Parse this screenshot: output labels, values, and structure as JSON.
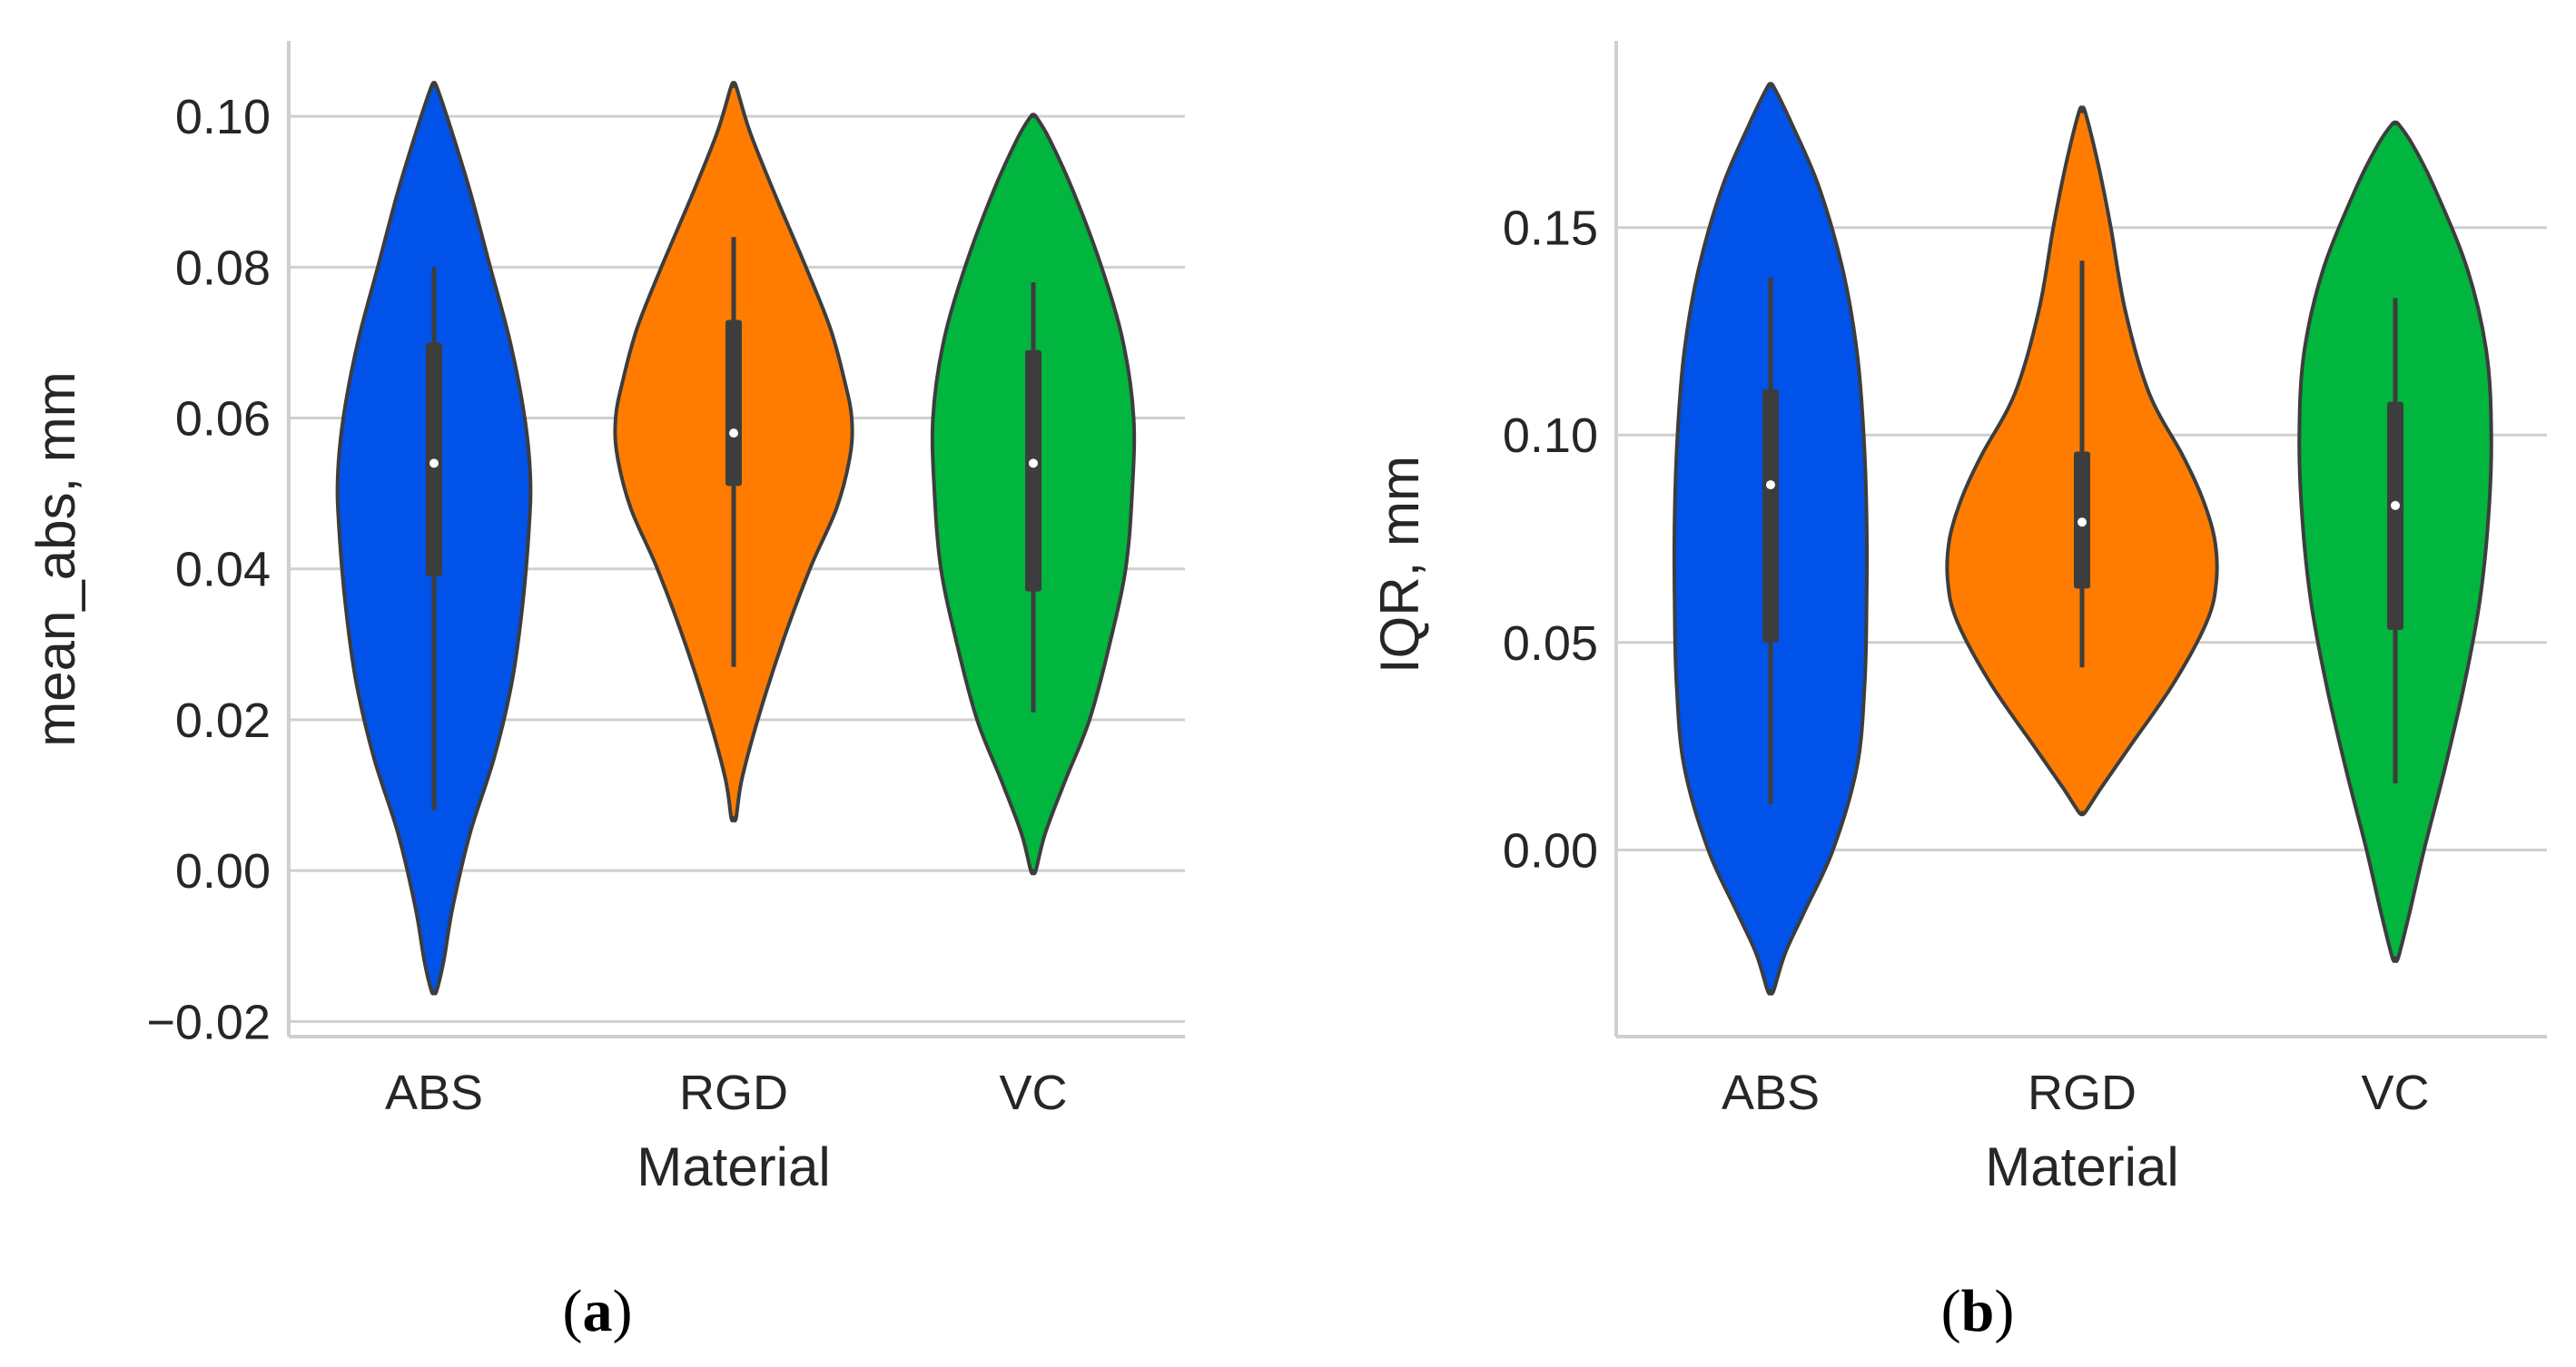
{
  "chart_data": [
    {
      "type": "violin",
      "panel_label": "a",
      "xlabel": "Material",
      "ylabel": "mean_abs, mm",
      "categories": [
        "ABS",
        "RGD",
        "VC"
      ],
      "ylim": [
        -0.022,
        0.11
      ],
      "yticks": [
        -0.02,
        0.0,
        0.02,
        0.04,
        0.06,
        0.08,
        0.1
      ],
      "ytick_labels": [
        "−0.02",
        "0.00",
        "0.02",
        "0.04",
        "0.06",
        "0.08",
        "0.10"
      ],
      "grid": "horizontal",
      "series": [
        {
          "category": "ABS",
          "color": "#0152e8",
          "median": 0.054,
          "q1": 0.039,
          "q3": 0.07,
          "whisker_low": 0.008,
          "whisker_high": 0.08,
          "profile": [
            [
              -0.016,
              0.003
            ],
            [
              -0.012,
              0.012
            ],
            [
              -0.005,
              0.023
            ],
            [
              0.005,
              0.045
            ],
            [
              0.015,
              0.075
            ],
            [
              0.025,
              0.097
            ],
            [
              0.035,
              0.11
            ],
            [
              0.045,
              0.118
            ],
            [
              0.052,
              0.12
            ],
            [
              0.06,
              0.113
            ],
            [
              0.07,
              0.095
            ],
            [
              0.08,
              0.07
            ],
            [
              0.09,
              0.045
            ],
            [
              0.098,
              0.022
            ],
            [
              0.104,
              0.003
            ]
          ]
        },
        {
          "category": "RGD",
          "color": "#ff7c00",
          "median": 0.058,
          "q1": 0.051,
          "q3": 0.073,
          "whisker_low": 0.027,
          "whisker_high": 0.084,
          "profile": [
            [
              0.007,
              0.003
            ],
            [
              0.012,
              0.01
            ],
            [
              0.02,
              0.03
            ],
            [
              0.03,
              0.06
            ],
            [
              0.04,
              0.095
            ],
            [
              0.048,
              0.128
            ],
            [
              0.055,
              0.145
            ],
            [
              0.06,
              0.147
            ],
            [
              0.065,
              0.138
            ],
            [
              0.072,
              0.12
            ],
            [
              0.08,
              0.09
            ],
            [
              0.09,
              0.05
            ],
            [
              0.098,
              0.02
            ],
            [
              0.104,
              0.003
            ]
          ]
        },
        {
          "category": "VC",
          "color": "#00b63e",
          "median": 0.054,
          "q1": 0.037,
          "q3": 0.069,
          "whisker_low": 0.021,
          "whisker_high": 0.078,
          "profile": [
            [
              0.0,
              0.003
            ],
            [
              0.005,
              0.015
            ],
            [
              0.012,
              0.04
            ],
            [
              0.02,
              0.07
            ],
            [
              0.03,
              0.095
            ],
            [
              0.04,
              0.115
            ],
            [
              0.05,
              0.123
            ],
            [
              0.06,
              0.125
            ],
            [
              0.07,
              0.112
            ],
            [
              0.08,
              0.085
            ],
            [
              0.09,
              0.05
            ],
            [
              0.097,
              0.02
            ],
            [
              0.1,
              0.003
            ]
          ]
        }
      ]
    },
    {
      "type": "violin",
      "panel_label": "b",
      "xlabel": "Material",
      "ylabel": "IQR, mm",
      "categories": [
        "ABS",
        "RGD",
        "VC"
      ],
      "ylim": [
        -0.045,
        0.195
      ],
      "yticks": [
        0.0,
        0.05,
        0.1,
        0.15
      ],
      "ytick_labels": [
        "0.00",
        "0.05",
        "0.10",
        "0.15"
      ],
      "grid": "horizontal",
      "series": [
        {
          "category": "ABS",
          "color": "#0152e8",
          "median": 0.088,
          "q1": 0.05,
          "q3": 0.111,
          "whisker_low": 0.011,
          "whisker_high": 0.138,
          "profile": [
            [
              -0.034,
              0.003
            ],
            [
              -0.025,
              0.015
            ],
            [
              -0.015,
              0.035
            ],
            [
              0.0,
              0.065
            ],
            [
              0.02,
              0.09
            ],
            [
              0.04,
              0.098
            ],
            [
              0.06,
              0.1
            ],
            [
              0.08,
              0.1
            ],
            [
              0.1,
              0.097
            ],
            [
              0.12,
              0.09
            ],
            [
              0.14,
              0.075
            ],
            [
              0.16,
              0.05
            ],
            [
              0.175,
              0.022
            ],
            [
              0.184,
              0.003
            ]
          ]
        },
        {
          "category": "RGD",
          "color": "#ff7c00",
          "median": 0.079,
          "q1": 0.063,
          "q3": 0.096,
          "whisker_low": 0.044,
          "whisker_high": 0.142,
          "profile": [
            [
              0.009,
              0.003
            ],
            [
              0.015,
              0.02
            ],
            [
              0.025,
              0.05
            ],
            [
              0.04,
              0.095
            ],
            [
              0.055,
              0.13
            ],
            [
              0.065,
              0.14
            ],
            [
              0.075,
              0.138
            ],
            [
              0.085,
              0.125
            ],
            [
              0.095,
              0.105
            ],
            [
              0.11,
              0.07
            ],
            [
              0.13,
              0.045
            ],
            [
              0.15,
              0.03
            ],
            [
              0.165,
              0.017
            ],
            [
              0.178,
              0.003
            ]
          ]
        },
        {
          "category": "VC",
          "color": "#00b63e",
          "median": 0.083,
          "q1": 0.053,
          "q3": 0.108,
          "whisker_low": 0.016,
          "whisker_high": 0.133,
          "profile": [
            [
              -0.026,
              0.003
            ],
            [
              -0.015,
              0.015
            ],
            [
              0.0,
              0.03
            ],
            [
              0.02,
              0.052
            ],
            [
              0.04,
              0.072
            ],
            [
              0.06,
              0.088
            ],
            [
              0.08,
              0.097
            ],
            [
              0.1,
              0.1
            ],
            [
              0.12,
              0.095
            ],
            [
              0.14,
              0.075
            ],
            [
              0.16,
              0.04
            ],
            [
              0.17,
              0.018
            ],
            [
              0.175,
              0.003
            ]
          ]
        }
      ]
    }
  ]
}
